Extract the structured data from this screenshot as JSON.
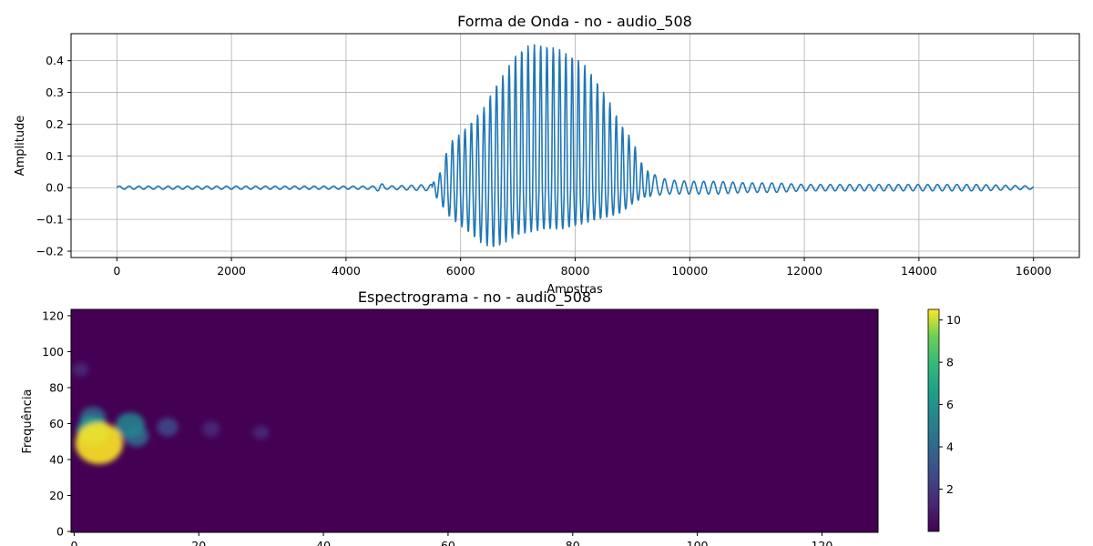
{
  "chart_data": [
    {
      "type": "line",
      "title": "Forma de Onda - no - audio_508",
      "xlabel": "Amostras",
      "ylabel": "Amplitude",
      "xlim": [
        -800,
        16800
      ],
      "ylim": [
        -0.22,
        0.485
      ],
      "grid": true,
      "line_color": "#1f77b4",
      "x_ticks": [
        0,
        2000,
        4000,
        6000,
        8000,
        10000,
        12000,
        14000,
        16000
      ],
      "y_ticks": [
        -0.2,
        -0.1,
        0.0,
        0.1,
        0.2,
        0.3,
        0.4
      ],
      "x_tick_labels": [
        "0",
        "2000",
        "4000",
        "6000",
        "8000",
        "10000",
        "12000",
        "14000",
        "16000"
      ],
      "y_tick_labels": [
        "−0.2",
        "−0.1",
        "0.0",
        "0.1",
        "0.2",
        "0.3",
        "0.4"
      ],
      "num_samples": 16000,
      "peak_envelope": {
        "x": [
          0,
          4500,
          4600,
          4700,
          5500,
          5650,
          5800,
          6000,
          6200,
          6400,
          6600,
          6800,
          7000,
          7200,
          7500,
          7800,
          8000,
          8200,
          8400,
          8600,
          8800,
          9000,
          9200,
          9400,
          9600,
          10000,
          10500,
          11000,
          11500,
          12000,
          13000,
          14000,
          15000,
          16000
        ],
        "upper": [
          0.005,
          0.005,
          0.015,
          0.005,
          0.01,
          0.05,
          0.14,
          0.17,
          0.21,
          0.25,
          0.32,
          0.37,
          0.43,
          0.45,
          0.45,
          0.43,
          0.41,
          0.38,
          0.33,
          0.27,
          0.2,
          0.15,
          0.06,
          0.04,
          0.025,
          0.02,
          0.02,
          0.015,
          0.015,
          0.01,
          0.01,
          0.01,
          0.01,
          0.005
        ],
        "lower": [
          -0.005,
          -0.005,
          -0.015,
          -0.005,
          -0.01,
          -0.05,
          -0.09,
          -0.12,
          -0.15,
          -0.18,
          -0.19,
          -0.17,
          -0.15,
          -0.14,
          -0.13,
          -0.13,
          -0.12,
          -0.11,
          -0.1,
          -0.09,
          -0.08,
          -0.05,
          -0.03,
          -0.025,
          -0.02,
          -0.02,
          -0.02,
          -0.015,
          -0.015,
          -0.01,
          -0.01,
          -0.01,
          -0.01,
          -0.005
        ]
      }
    },
    {
      "type": "heatmap",
      "title": "Espectrograma - no - audio_508",
      "xlabel": "",
      "ylabel": "Frequência",
      "xlim": [
        -0.5,
        129
      ],
      "ylim": [
        -0.5,
        123.5
      ],
      "x_ticks": [
        0,
        20,
        40,
        60,
        80,
        100,
        120
      ],
      "y_ticks": [
        0,
        20,
        40,
        60,
        80,
        100,
        120
      ],
      "x_tick_labels": [
        "0",
        "20",
        "40",
        "60",
        "80",
        "100",
        "120"
      ],
      "y_tick_labels": [
        "0",
        "20",
        "40",
        "60",
        "80",
        "100",
        "120"
      ],
      "colormap": "viridis",
      "colorbar": {
        "min": 0,
        "max": 10.5,
        "ticks": [
          2,
          4,
          6,
          8,
          10
        ],
        "tick_labels": [
          "2",
          "4",
          "6",
          "8",
          "10"
        ]
      },
      "blobs": [
        {
          "x": 4,
          "y": 49,
          "value": 10.5
        },
        {
          "x": 3,
          "y": 56,
          "value": 6
        },
        {
          "x": 3,
          "y": 63,
          "value": 4
        },
        {
          "x": 9,
          "y": 59,
          "value": 5
        },
        {
          "x": 10,
          "y": 53,
          "value": 3.5
        },
        {
          "x": 15,
          "y": 58,
          "value": 2.5
        },
        {
          "x": 22,
          "y": 57,
          "value": 1.5
        },
        {
          "x": 30,
          "y": 55,
          "value": 1
        },
        {
          "x": 45,
          "y": 56,
          "value": 0.5
        },
        {
          "x": 1,
          "y": 90,
          "value": 1
        }
      ]
    }
  ]
}
